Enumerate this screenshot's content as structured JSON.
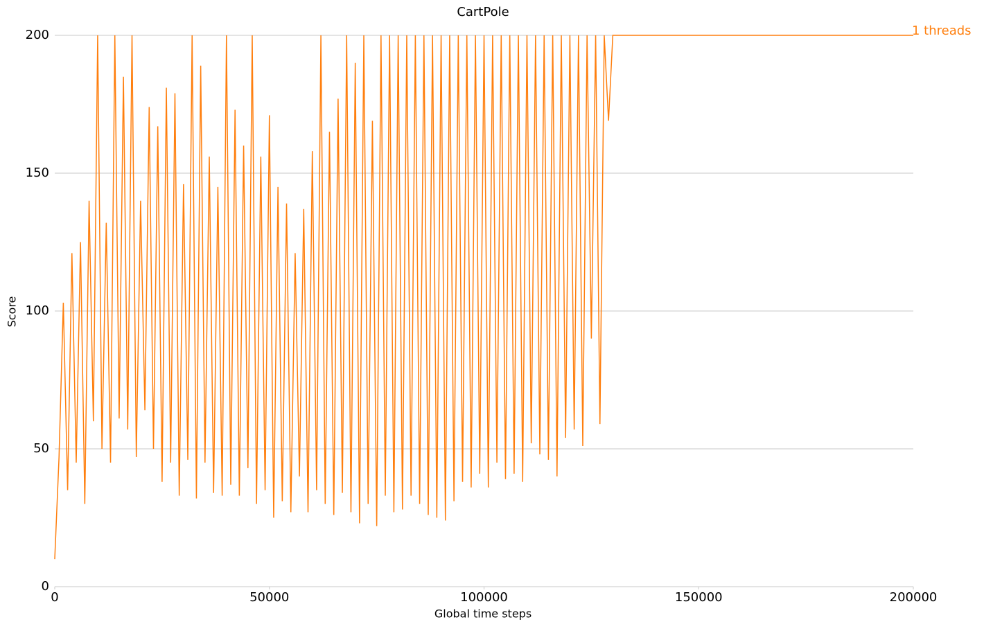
{
  "chart_data": {
    "type": "line",
    "title": "CartPole",
    "xlabel": "Global time steps",
    "ylabel": "Score",
    "xlim": [
      0,
      200000
    ],
    "ylim": [
      0,
      200
    ],
    "xticks": [
      0,
      50000,
      100000,
      150000,
      200000
    ],
    "yticks": [
      0,
      50,
      100,
      150,
      200
    ],
    "grid": true,
    "x": [
      0,
      1000,
      2000,
      3000,
      4000,
      5000,
      6000,
      7000,
      8000,
      9000,
      10000,
      11000,
      12000,
      13000,
      14000,
      15000,
      16000,
      17000,
      18000,
      19000,
      20000,
      21000,
      22000,
      23000,
      24000,
      25000,
      26000,
      27000,
      28000,
      29000,
      30000,
      31000,
      32000,
      33000,
      34000,
      35000,
      36000,
      37000,
      38000,
      39000,
      40000,
      41000,
      42000,
      43000,
      44000,
      45000,
      46000,
      47000,
      48000,
      49000,
      50000,
      51000,
      52000,
      53000,
      54000,
      55000,
      56000,
      57000,
      58000,
      59000,
      60000,
      61000,
      62000,
      63000,
      64000,
      65000,
      66000,
      67000,
      68000,
      69000,
      70000,
      71000,
      72000,
      73000,
      74000,
      75000,
      76000,
      77000,
      78000,
      79000,
      80000,
      81000,
      82000,
      83000,
      84000,
      85000,
      86000,
      87000,
      88000,
      89000,
      90000,
      91000,
      92000,
      93000,
      94000,
      95000,
      96000,
      97000,
      98000,
      99000,
      100000,
      101000,
      102000,
      103000,
      104000,
      105000,
      106000,
      107000,
      108000,
      109000,
      110000,
      111000,
      112000,
      113000,
      114000,
      115000,
      116000,
      117000,
      118000,
      119000,
      120000,
      121000,
      122000,
      123000,
      124000,
      125000,
      126000,
      127000,
      128000,
      129000,
      130000,
      200000
    ],
    "series": [
      {
        "name": "1 threads",
        "color": "#ff7f0e",
        "values": [
          10,
          47,
          103,
          35,
          121,
          45,
          125,
          30,
          140,
          60,
          200,
          50,
          132,
          45,
          200,
          61,
          185,
          57,
          200,
          47,
          140,
          64,
          174,
          50,
          167,
          38,
          181,
          45,
          179,
          33,
          146,
          46,
          200,
          32,
          189,
          45,
          156,
          34,
          145,
          33,
          200,
          37,
          173,
          33,
          160,
          43,
          200,
          30,
          156,
          35,
          171,
          25,
          145,
          31,
          139,
          27,
          121,
          40,
          137,
          27,
          158,
          35,
          200,
          30,
          165,
          26,
          177,
          34,
          200,
          27,
          190,
          23,
          200,
          30,
          169,
          22,
          200,
          33,
          200,
          27,
          200,
          28,
          200,
          33,
          200,
          30,
          200,
          26,
          200,
          25,
          200,
          24,
          200,
          31,
          200,
          38,
          200,
          36,
          200,
          41,
          200,
          36,
          200,
          45,
          200,
          39,
          200,
          41,
          200,
          38,
          200,
          52,
          200,
          48,
          200,
          46,
          200,
          40,
          200,
          54,
          200,
          57,
          200,
          51,
          200,
          90,
          200,
          59,
          200,
          169,
          200,
          200
        ]
      }
    ]
  }
}
